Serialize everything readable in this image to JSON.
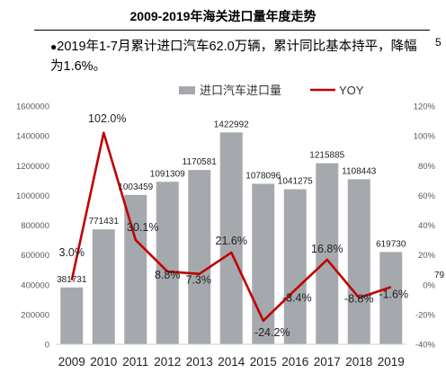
{
  "page_title": "2009-2019年海关进口量年度走势",
  "note_bullet": "●",
  "note_text": "2019年1-7月累计进口汽车62.0万辆，累计同比基本持平，降幅为1.6%。",
  "cutoff_char": "5",
  "side_clip_text": "79",
  "colors": {
    "bar": "#a5a9ad",
    "line": "#c00000"
  },
  "chart_data": {
    "type": "bar+line",
    "categories": [
      "2009",
      "2010",
      "2011",
      "2012",
      "2013",
      "2014",
      "2015",
      "2016",
      "2017",
      "2018",
      "2019"
    ],
    "series": [
      {
        "name": "进口汽车进口量",
        "axis": "left",
        "values": [
          381731,
          771431,
          1003459,
          1091309,
          1170581,
          1422992,
          1078096,
          1041275,
          1215885,
          1108443,
          619730
        ],
        "labels": [
          "381731",
          "771431",
          "1003459",
          "1091309",
          "1170581",
          "1422992",
          "1078096",
          "1041275",
          "1215885",
          "1108443",
          "619730"
        ]
      },
      {
        "name": "YOY",
        "axis": "right",
        "values": [
          3.0,
          102.0,
          30.1,
          8.8,
          7.3,
          21.6,
          -24.2,
          -3.4,
          16.8,
          -8.8,
          -1.6
        ],
        "labels": [
          "3.0%",
          "102.0%",
          "30.1%",
          "8.8%",
          "7.3%",
          "21.6%",
          "-24.2%",
          "-3.4%",
          "16.8%",
          "-8.8%",
          "-1.6%"
        ]
      }
    ],
    "y_left": {
      "min": 0,
      "max": 1600000,
      "ticks": [
        "0",
        "200000",
        "400000",
        "600000",
        "800000",
        "1000000",
        "1200000",
        "1400000",
        "1600000"
      ]
    },
    "y_right": {
      "min": -40,
      "max": 120,
      "ticks": [
        "-40%",
        "-20%",
        "0%",
        "20%",
        "40%",
        "60%",
        "80%",
        "100%",
        "120%"
      ]
    },
    "legend_position": "top",
    "grid": false
  }
}
